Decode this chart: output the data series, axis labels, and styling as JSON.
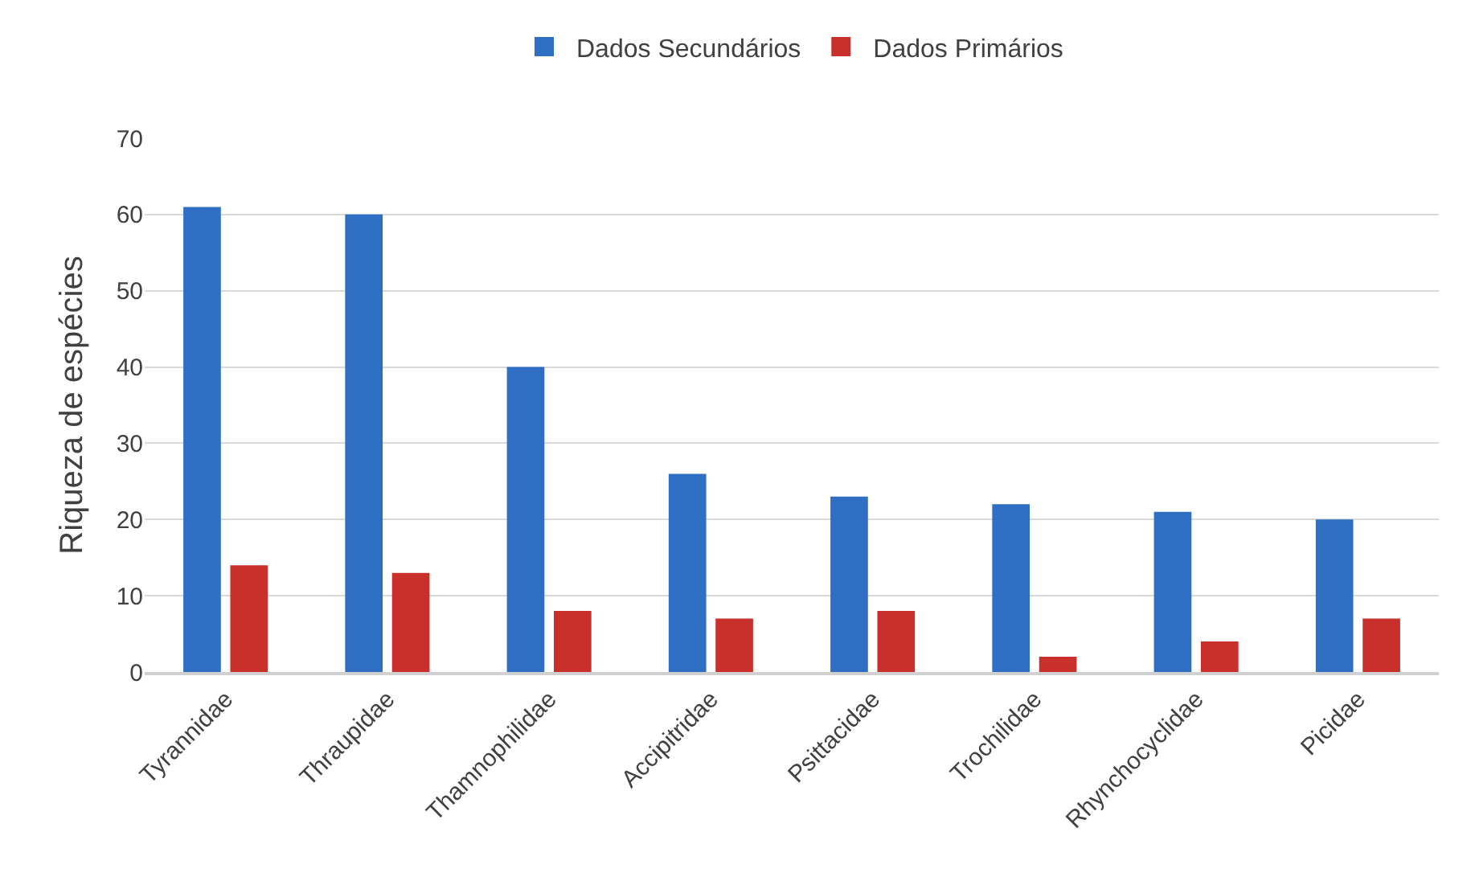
{
  "chart_data": {
    "type": "bar",
    "ylabel": "Riqueza de espécies",
    "categories": [
      "Tyrannidae",
      "Thraupidae",
      "Thamnophilidae",
      "Accipitridae",
      "Psittacidae",
      "Trochilidae",
      "Rhynchocyclidae",
      "Picidae"
    ],
    "series": [
      {
        "name": "Dados Secundários",
        "color": "#2e6fc4",
        "values": [
          61,
          60,
          40,
          26,
          23,
          22,
          21,
          20
        ]
      },
      {
        "name": "Dados Primários",
        "color": "#c9302c",
        "values": [
          14,
          13,
          8,
          7,
          8,
          2,
          4,
          7
        ]
      }
    ],
    "ylim": [
      0,
      70
    ],
    "yticks": [
      0,
      10,
      20,
      30,
      40,
      50,
      60,
      70
    ],
    "grid": "y",
    "legend": "top"
  }
}
